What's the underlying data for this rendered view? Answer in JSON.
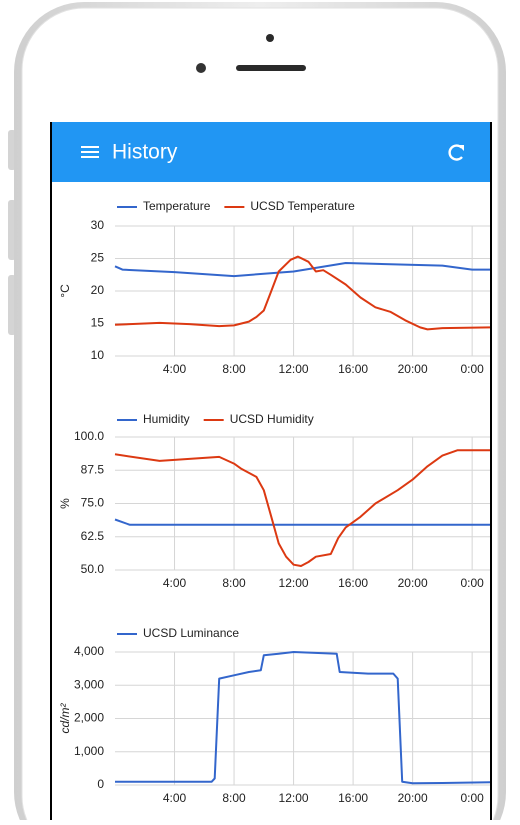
{
  "app_bar": {
    "title": "History"
  },
  "chart_data": [
    {
      "type": "line",
      "y_label": "°C",
      "xlim": [
        0,
        25.2
      ],
      "ylim": [
        10,
        30
      ],
      "xticks": [
        {
          "value": 4,
          "label": "4:00"
        },
        {
          "value": 8,
          "label": "8:00"
        },
        {
          "value": 12,
          "label": "12:00"
        },
        {
          "value": 16,
          "label": "16:00"
        },
        {
          "value": 20,
          "label": "20:00"
        },
        {
          "value": 24,
          "label": "0:00"
        }
      ],
      "yticks": [
        10,
        15,
        20,
        25,
        30
      ],
      "grid": true,
      "series": [
        {
          "name": "Temperature",
          "color": "#3366cc",
          "x": [
            0,
            0.5,
            4,
            8,
            12,
            15.5,
            22,
            24,
            25.2
          ],
          "values": [
            23.8,
            23.3,
            22.9,
            22.3,
            23.0,
            24.3,
            23.9,
            23.3,
            23.3
          ]
        },
        {
          "name": "UCSD Temperature",
          "color": "#dc3912",
          "x": [
            0,
            2,
            3,
            5,
            7,
            8,
            9,
            9.5,
            10,
            10.5,
            11,
            11.8,
            12.3,
            13,
            13.5,
            14,
            14.5,
            15.5,
            16.5,
            17.5,
            18.5,
            19.5,
            20.5,
            21,
            22,
            25.2
          ],
          "values": [
            14.8,
            15.0,
            15.1,
            14.9,
            14.6,
            14.7,
            15.3,
            16.0,
            17.0,
            20.0,
            23.0,
            24.8,
            25.3,
            24.5,
            23.0,
            23.2,
            22.5,
            21.0,
            19.0,
            17.5,
            16.8,
            15.5,
            14.4,
            14.1,
            14.3,
            14.4
          ]
        }
      ]
    },
    {
      "type": "line",
      "y_label": "%",
      "xlim": [
        0,
        25.2
      ],
      "ylim": [
        50,
        100
      ],
      "xticks": [
        {
          "value": 4,
          "label": "4:00"
        },
        {
          "value": 8,
          "label": "8:00"
        },
        {
          "value": 12,
          "label": "12:00"
        },
        {
          "value": 16,
          "label": "16:00"
        },
        {
          "value": 20,
          "label": "20:00"
        },
        {
          "value": 24,
          "label": "0:00"
        }
      ],
      "yticks": [
        {
          "value": 50,
          "label": "50.0"
        },
        62.5,
        {
          "value": 75,
          "label": "75.0"
        },
        87.5,
        {
          "value": 100,
          "label": "100.0"
        }
      ],
      "grid": true,
      "series": [
        {
          "name": "Humidity",
          "color": "#3366cc",
          "x": [
            0,
            1,
            25.2
          ],
          "values": [
            69,
            67,
            67
          ]
        },
        {
          "name": "UCSD Humidity",
          "color": "#dc3912",
          "x": [
            0,
            3,
            7,
            8,
            8.5,
            9.5,
            10,
            10.5,
            11,
            11.5,
            12,
            12.5,
            13,
            13.5,
            14.5,
            15,
            15.5,
            16.5,
            17.5,
            19,
            20,
            21,
            22,
            23,
            25.2
          ],
          "values": [
            93.5,
            91,
            92.5,
            90,
            88,
            85,
            80,
            70,
            60,
            55,
            52,
            51.5,
            53,
            55,
            56,
            62,
            66,
            70,
            75,
            80,
            84,
            89,
            93,
            95,
            95
          ]
        }
      ]
    },
    {
      "type": "line",
      "y_label": "cd/m²",
      "xlim": [
        0,
        25.2
      ],
      "ylim": [
        0,
        4000
      ],
      "xticks": [
        {
          "value": 4,
          "label": "4:00"
        },
        {
          "value": 8,
          "label": "8:00"
        },
        {
          "value": 12,
          "label": "12:00"
        },
        {
          "value": 16,
          "label": "16:00"
        },
        {
          "value": 20,
          "label": "20:00"
        },
        {
          "value": 24,
          "label": "0:00"
        }
      ],
      "yticks": [
        0,
        {
          "value": 1000,
          "label": "1,000"
        },
        {
          "value": 2000,
          "label": "2,000"
        },
        {
          "value": 3000,
          "label": "3,000"
        },
        {
          "value": 4000,
          "label": "4,000"
        }
      ],
      "grid": true,
      "series": [
        {
          "name": "UCSD Luminance",
          "color": "#3366cc",
          "x": [
            0,
            6.5,
            6.7,
            7,
            8,
            9,
            9.8,
            10,
            11,
            12,
            14.9,
            15.1,
            17,
            18.7,
            19,
            19.3,
            20,
            22,
            25.2
          ],
          "values": [
            100,
            100,
            200,
            3200,
            3300,
            3400,
            3450,
            3900,
            3950,
            4000,
            3950,
            3400,
            3350,
            3350,
            3200,
            100,
            50,
            60,
            80
          ]
        }
      ]
    }
  ]
}
